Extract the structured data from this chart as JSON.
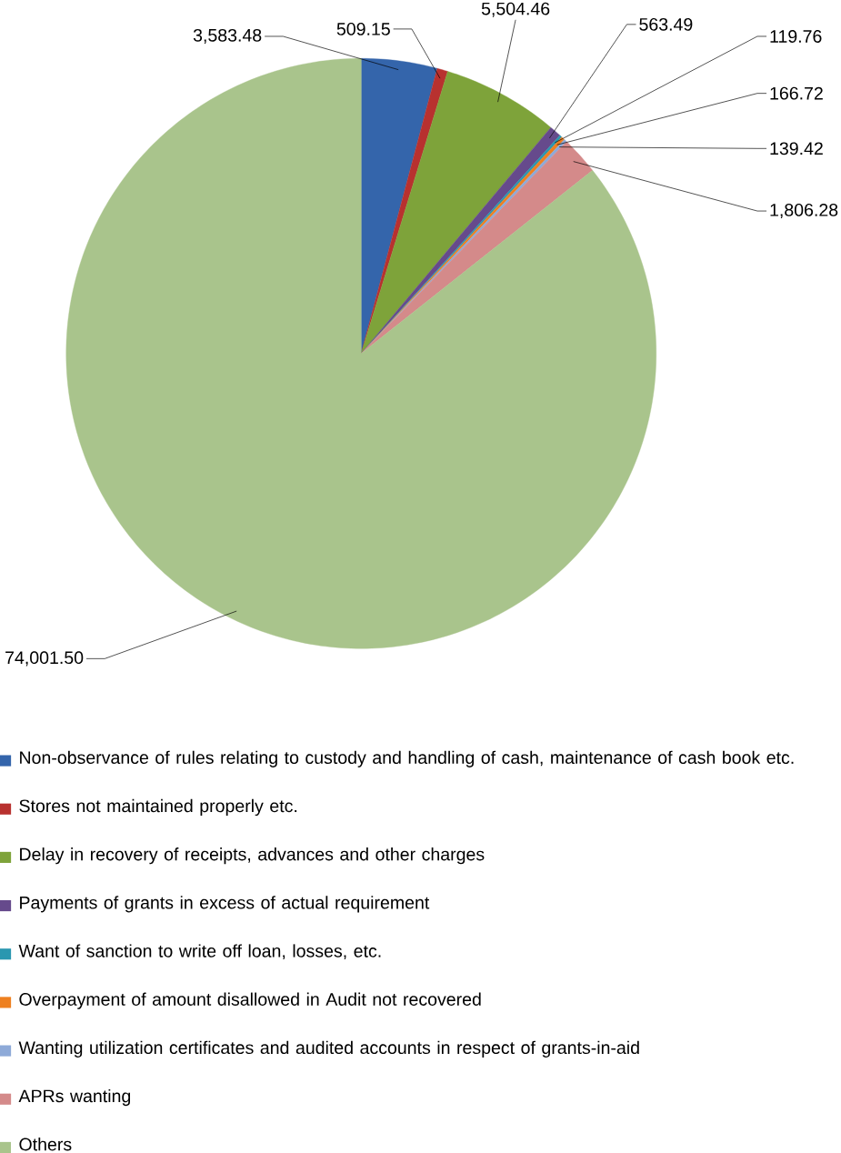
{
  "chart_data": {
    "type": "pie",
    "categories": [
      "Non-observance of rules relating to custody and handling of cash, maintenance of cash book etc.",
      "Stores not maintained properly etc.",
      "Delay in recovery of receipts, advances and other charges",
      "Payments of grants in excess of actual requirement",
      "Want of sanction to write off loan, losses, etc.",
      "Overpayment of amount disallowed in Audit not recovered",
      "Wanting utilization certificates and audited accounts in respect of grants-in-aid",
      "APRs wanting",
      "Others"
    ],
    "values": [
      3583.48,
      509.15,
      5504.46,
      563.49,
      119.76,
      166.72,
      139.42,
      1806.28,
      74001.5
    ],
    "value_labels": [
      "3,583.48",
      "509.15",
      "5,504.46",
      "563.49",
      "119.76",
      "166.72",
      "139.42",
      "1,806.28",
      "74,001.50"
    ],
    "colors": [
      "#3465ab",
      "#b8312f",
      "#7ea33a",
      "#664a8c",
      "#2a97b0",
      "#ee8020",
      "#8eaad8",
      "#d48a8a",
      "#a9c48c"
    ],
    "legend": "bottom"
  }
}
